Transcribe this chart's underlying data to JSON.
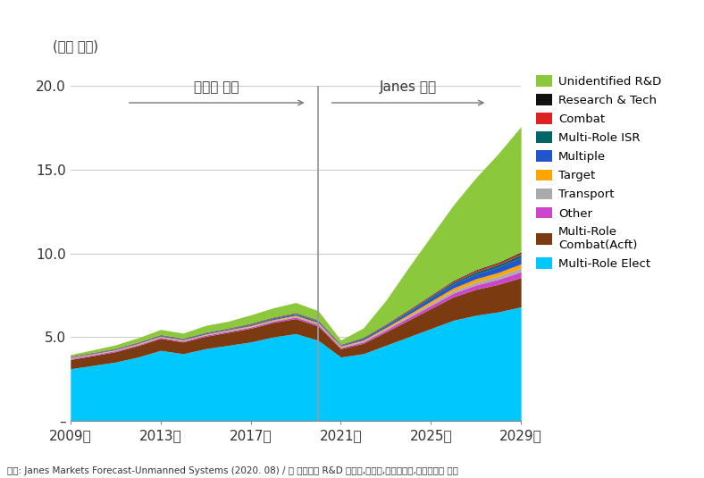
{
  "years": [
    2009,
    2010,
    2011,
    2012,
    2013,
    2014,
    2015,
    2016,
    2017,
    2018,
    2019,
    2020,
    2021,
    2022,
    2023,
    2024,
    2025,
    2026,
    2027,
    2028,
    2029
  ],
  "series": {
    "Multi-Role Elect": [
      3.1,
      3.3,
      3.5,
      3.8,
      4.2,
      4.0,
      4.3,
      4.5,
      4.7,
      5.0,
      5.2,
      4.8,
      3.8,
      4.0,
      4.5,
      5.0,
      5.5,
      6.0,
      6.3,
      6.5,
      6.8
    ],
    "Multi-Role Combat(Acft)": [
      0.55,
      0.58,
      0.62,
      0.68,
      0.72,
      0.7,
      0.74,
      0.78,
      0.82,
      0.87,
      0.9,
      0.85,
      0.5,
      0.62,
      0.8,
      1.0,
      1.2,
      1.4,
      1.55,
      1.65,
      1.75
    ],
    "Other": [
      0.06,
      0.06,
      0.06,
      0.06,
      0.06,
      0.06,
      0.07,
      0.07,
      0.07,
      0.08,
      0.09,
      0.1,
      0.07,
      0.09,
      0.12,
      0.15,
      0.18,
      0.22,
      0.26,
      0.3,
      0.35
    ],
    "Transport": [
      0.03,
      0.03,
      0.03,
      0.03,
      0.03,
      0.03,
      0.03,
      0.04,
      0.04,
      0.04,
      0.05,
      0.05,
      0.04,
      0.05,
      0.07,
      0.09,
      0.12,
      0.14,
      0.17,
      0.19,
      0.22
    ],
    "Target": [
      0.03,
      0.03,
      0.03,
      0.04,
      0.04,
      0.04,
      0.04,
      0.04,
      0.05,
      0.05,
      0.06,
      0.06,
      0.05,
      0.06,
      0.08,
      0.1,
      0.14,
      0.17,
      0.2,
      0.22,
      0.25
    ],
    "Multiple": [
      0.03,
      0.03,
      0.04,
      0.04,
      0.04,
      0.04,
      0.05,
      0.05,
      0.05,
      0.06,
      0.07,
      0.07,
      0.05,
      0.08,
      0.1,
      0.14,
      0.19,
      0.24,
      0.28,
      0.32,
      0.38
    ],
    "Multi-Role ISR": [
      0.02,
      0.02,
      0.02,
      0.02,
      0.03,
      0.03,
      0.03,
      0.03,
      0.04,
      0.04,
      0.04,
      0.04,
      0.03,
      0.04,
      0.05,
      0.07,
      0.09,
      0.11,
      0.13,
      0.15,
      0.17
    ],
    "Combat": [
      0.02,
      0.02,
      0.02,
      0.02,
      0.02,
      0.02,
      0.02,
      0.02,
      0.03,
      0.03,
      0.03,
      0.03,
      0.02,
      0.03,
      0.04,
      0.05,
      0.06,
      0.07,
      0.08,
      0.09,
      0.1
    ],
    "Research & Tech": [
      0.01,
      0.01,
      0.01,
      0.01,
      0.01,
      0.01,
      0.01,
      0.01,
      0.02,
      0.02,
      0.02,
      0.02,
      0.01,
      0.02,
      0.02,
      0.03,
      0.03,
      0.04,
      0.05,
      0.05,
      0.06
    ],
    "Unidentified R&D": [
      0.1,
      0.15,
      0.2,
      0.25,
      0.3,
      0.3,
      0.4,
      0.4,
      0.5,
      0.55,
      0.6,
      0.55,
      0.25,
      0.55,
      1.4,
      2.5,
      3.5,
      4.5,
      5.5,
      6.5,
      7.5
    ]
  },
  "colors": {
    "Multi-Role Elect": "#00C8FF",
    "Multi-Role Combat(Acft)": "#7B3A10",
    "Other": "#CC44CC",
    "Transport": "#AAAAAA",
    "Target": "#FFA500",
    "Multiple": "#2255CC",
    "Multi-Role ISR": "#006666",
    "Combat": "#DD2222",
    "Research & Tech": "#111111",
    "Unidentified R&D": "#8CC83C"
  },
  "stack_order": [
    "Multi-Role Elect",
    "Multi-Role Combat(Acft)",
    "Other",
    "Transport",
    "Target",
    "Multiple",
    "Multi-Role ISR",
    "Combat",
    "Research & Tech",
    "Unidentified R&D"
  ],
  "legend_order": [
    "Unidentified R&D",
    "Research & Tech",
    "Combat",
    "Multi-Role ISR",
    "Multiple",
    "Target",
    "Transport",
    "Other",
    "Multi-Role Combat(Acft)",
    "Multi-Role Elect"
  ],
  "ylabel": "(십억 달러)",
  "ylim": [
    0,
    20.0
  ],
  "yticks": [
    0,
    5.0,
    10.0,
    15.0,
    20.0
  ],
  "ytick_labels": [
    "–",
    "5.0",
    "10.0",
    "15.0",
    "20.0"
  ],
  "xtick_years": [
    2009,
    2013,
    2017,
    2021,
    2025,
    2029
  ],
  "xtick_labels": [
    "2009년",
    "2013년",
    "2017년",
    "2021년",
    "2025년",
    "2029년"
  ],
  "divider_year": 2020,
  "annotation_left": "조사된 현황",
  "annotation_right": "Janes 예측",
  "footnote": "출첸: Janes Markets Forecast-Unmanned Systems (2020. 08) / 총 금액에는 R&D 투자액,제작비,운영유지비,서비스비용 포함",
  "background_color": "#FFFFFF"
}
